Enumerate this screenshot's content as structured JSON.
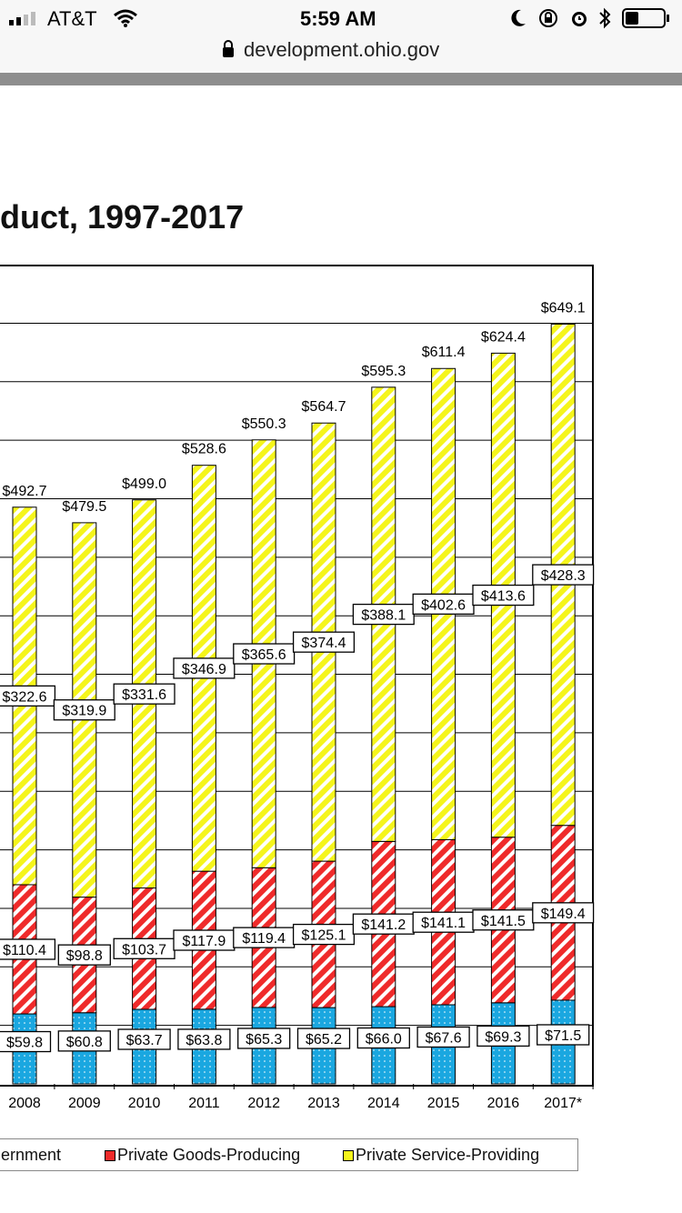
{
  "status_bar": {
    "carrier": "AT&T",
    "time": "5:59 AM"
  },
  "browser": {
    "url": "development.ohio.gov"
  },
  "page": {
    "title": "duct, 1997-2017"
  },
  "colors": {
    "government": "#1aa7e0",
    "goods": "#ef2b2b",
    "service": "#f5f51c"
  },
  "legend": {
    "government_label": "ernment",
    "goods_label": "Private Goods-Producing",
    "service_label": "Private Service-Providing"
  },
  "chart_data": {
    "type": "bar",
    "stacked": true,
    "title": "",
    "categories": [
      "2008",
      "2009",
      "2010",
      "2011",
      "2012",
      "2013",
      "2014",
      "2015",
      "2016",
      "2017*"
    ],
    "series": [
      {
        "name": "Government",
        "values": [
          59.8,
          60.8,
          63.7,
          63.8,
          65.3,
          65.2,
          66.0,
          67.6,
          69.3,
          71.5
        ],
        "labels": [
          "$59.8",
          "$60.8",
          "$63.7",
          "$63.8",
          "$65.3",
          "$65.2",
          "$66.0",
          "$67.6",
          "$69.3",
          "$71.5"
        ]
      },
      {
        "name": "Private Goods-Producing",
        "values": [
          110.4,
          98.8,
          103.7,
          117.9,
          119.4,
          125.1,
          141.2,
          141.1,
          141.5,
          149.4
        ],
        "labels": [
          "$110.4",
          "$98.8",
          "$103.7",
          "$117.9",
          "$119.4",
          "$125.1",
          "$141.2",
          "$141.1",
          "$141.5",
          "$149.4"
        ]
      },
      {
        "name": "Private Service-Providing",
        "values": [
          322.6,
          319.9,
          331.6,
          346.9,
          365.6,
          374.4,
          388.1,
          402.6,
          413.6,
          428.3
        ],
        "labels": [
          "$322.6",
          "$319.9",
          "$331.6",
          "$346.9",
          "$365.6",
          "$374.4",
          "$388.1",
          "$402.6",
          "$413.6",
          "$428.3"
        ]
      }
    ],
    "totals": [
      492.7,
      479.5,
      499.0,
      528.6,
      550.3,
      564.7,
      595.3,
      611.4,
      624.4,
      649.1
    ],
    "total_labels": [
      "$492.7",
      "$479.5",
      "$499.0",
      "$528.6",
      "$550.3",
      "$564.7",
      "$595.3",
      "$611.4",
      "$624.4",
      "$649.1"
    ],
    "ylim": [
      0,
      700
    ],
    "grid": true,
    "legend_position": "bottom"
  }
}
